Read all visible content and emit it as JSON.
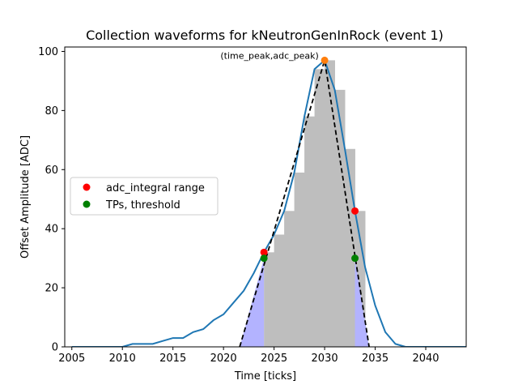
{
  "chart_data": {
    "type": "line",
    "title": "Collection waveforms for kNeutronGenInRock (event 1)",
    "xlabel": "Time [ticks]",
    "ylabel": "Offset Amplitude [ADC]",
    "xlim": [
      2004.3,
      2044
    ],
    "ylim": [
      0,
      101.5
    ],
    "xticks": [
      2005,
      2010,
      2015,
      2020,
      2025,
      2030,
      2035,
      2040
    ],
    "yticks": [
      0,
      20,
      40,
      60,
      80,
      100
    ],
    "grid": false,
    "legend_placement": "center-left",
    "waveform": {
      "color": "#1f77b4",
      "x": [
        2005,
        2006,
        2007,
        2008,
        2009,
        2010,
        2011,
        2012,
        2013,
        2014,
        2015,
        2016,
        2017,
        2018,
        2019,
        2020,
        2021,
        2022,
        2023,
        2024,
        2025,
        2026,
        2027,
        2028,
        2029,
        2030,
        2031,
        2032,
        2033,
        2034,
        2035,
        2036,
        2037,
        2038,
        2039,
        2040,
        2041,
        2042,
        2043,
        2044
      ],
      "y": [
        0,
        0,
        0,
        0,
        0,
        0,
        1,
        1,
        1,
        2,
        3,
        3,
        5,
        6,
        9,
        11,
        15,
        19,
        25,
        32,
        38,
        46,
        59,
        78,
        94,
        97,
        87,
        67,
        46,
        27,
        14,
        5,
        1,
        0,
        0,
        0,
        0,
        0,
        0,
        0
      ]
    },
    "bars": {
      "color": "#bebebe",
      "x": [
        2024,
        2025,
        2026,
        2027,
        2028,
        2029,
        2030,
        2031,
        2032,
        2033
      ],
      "values": [
        32,
        38,
        46,
        59,
        78,
        94,
        97,
        87,
        67,
        46
      ]
    },
    "triangle": {
      "color": "#000000",
      "x": [
        2021.6,
        2030,
        2034.4
      ],
      "y": [
        0,
        97,
        0
      ]
    },
    "fill": {
      "color": "#b3b3ff",
      "x": [
        2021.6,
        2024,
        2024,
        2033,
        2033,
        2034.4
      ],
      "y": [
        0,
        30,
        0,
        0,
        30,
        0
      ]
    },
    "peak_marker": {
      "color": "#ff7f0e",
      "x": 2030,
      "y": 97
    },
    "series": [
      {
        "name": "adc_integral range",
        "color": "#ff0000",
        "x": [
          2024,
          2033
        ],
        "y": [
          32,
          46
        ]
      },
      {
        "name": "TPs, threshold",
        "color": "#008000",
        "x": [
          2024,
          2033
        ],
        "y": [
          30,
          30
        ]
      }
    ],
    "annotation": {
      "text": "(time_peak,adc_peak)",
      "x": 2030,
      "y": 97
    }
  }
}
